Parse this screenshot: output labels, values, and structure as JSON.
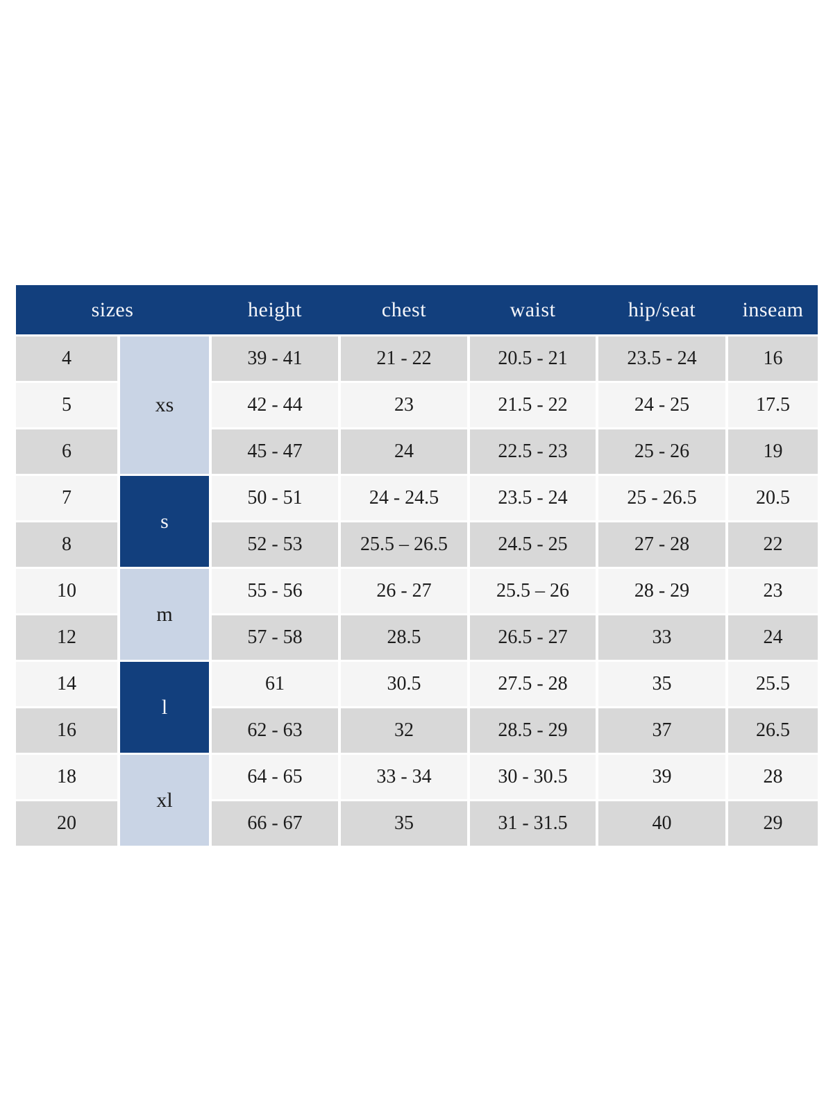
{
  "colors": {
    "page-bg": "#ffffff",
    "header-bg": "#123f7d",
    "header-text": "#f5f6fa",
    "group-light-bg": "#c9d4e5",
    "row-gray": "#d8d8d8",
    "row-light": "#f5f5f5",
    "ink": "#1c1c1c"
  },
  "chart_data": {
    "type": "table",
    "header": [
      "sizes",
      "height",
      "chest",
      "waist",
      "hip/seat",
      "inseam"
    ],
    "groups": [
      {
        "label": "xs",
        "sizes": [
          "4",
          "5",
          "6"
        ]
      },
      {
        "label": "s",
        "sizes": [
          "7",
          "8"
        ]
      },
      {
        "label": "m",
        "sizes": [
          "10",
          "12"
        ]
      },
      {
        "label": "l",
        "sizes": [
          "14",
          "16"
        ]
      },
      {
        "label": "xl",
        "sizes": [
          "18",
          "20"
        ]
      }
    ],
    "rows": [
      {
        "size": "4",
        "group": "xs",
        "height": "39 - 41",
        "chest": "21 - 22",
        "waist": "20.5 - 21",
        "hip_seat": "23.5 - 24",
        "inseam": "16"
      },
      {
        "size": "5",
        "group": "xs",
        "height": "42 - 44",
        "chest": "23",
        "waist": "21.5 - 22",
        "hip_seat": "24 - 25",
        "inseam": "17.5"
      },
      {
        "size": "6",
        "group": "xs",
        "height": "45 - 47",
        "chest": "24",
        "waist": "22.5 - 23",
        "hip_seat": "25 - 26",
        "inseam": "19"
      },
      {
        "size": "7",
        "group": "s",
        "height": "50 - 51",
        "chest": "24 - 24.5",
        "waist": "23.5 - 24",
        "hip_seat": "25 - 26.5",
        "inseam": "20.5"
      },
      {
        "size": "8",
        "group": "s",
        "height": "52 - 53",
        "chest": "25.5 – 26.5",
        "waist": "24.5 - 25",
        "hip_seat": "27 - 28",
        "inseam": "22"
      },
      {
        "size": "10",
        "group": "m",
        "height": "55 - 56",
        "chest": "26 - 27",
        "waist": "25.5 – 26",
        "hip_seat": "28 - 29",
        "inseam": "23"
      },
      {
        "size": "12",
        "group": "m",
        "height": "57 - 58",
        "chest": "28.5",
        "waist": "26.5 - 27",
        "hip_seat": "33",
        "inseam": "24"
      },
      {
        "size": "14",
        "group": "l",
        "height": "61",
        "chest": "30.5",
        "waist": "27.5 - 28",
        "hip_seat": "35",
        "inseam": "25.5"
      },
      {
        "size": "16",
        "group": "l",
        "height": "62 - 63",
        "chest": "32",
        "waist": "28.5 - 29",
        "hip_seat": "37",
        "inseam": "26.5"
      },
      {
        "size": "18",
        "group": "xl",
        "height": "64 - 65",
        "chest": "33 - 34",
        "waist": "30 - 30.5",
        "hip_seat": "39",
        "inseam": "28"
      },
      {
        "size": "20",
        "group": "xl",
        "height": "66 - 67",
        "chest": "35",
        "waist": "31 - 31.5",
        "hip_seat": "40",
        "inseam": "29"
      }
    ]
  }
}
